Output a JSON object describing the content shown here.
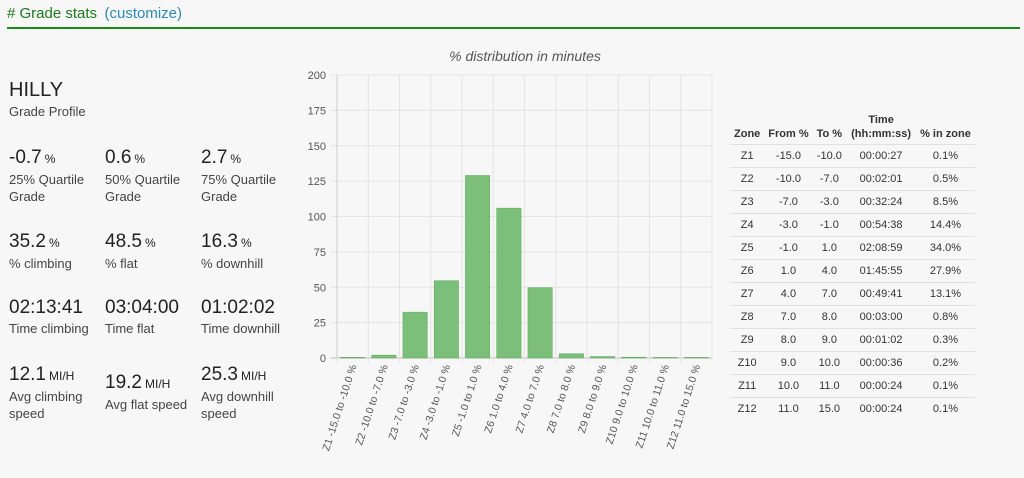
{
  "header": {
    "title": "# Grade stats",
    "customize": "(customize)"
  },
  "profile": {
    "name": "HILLY",
    "label": "Grade Profile"
  },
  "stats": {
    "q25": {
      "value": "-0.7",
      "unit": "%",
      "label": "25% Quartile Grade"
    },
    "q50": {
      "value": "0.6",
      "unit": "%",
      "label": "50% Quartile Grade"
    },
    "q75": {
      "value": "2.7",
      "unit": "%",
      "label": "75% Quartile Grade"
    },
    "pct_climbing": {
      "value": "35.2",
      "unit": "%",
      "label": "% climbing"
    },
    "pct_flat": {
      "value": "48.5",
      "unit": "%",
      "label": "% flat"
    },
    "pct_downhill": {
      "value": "16.3",
      "unit": "%",
      "label": "% downhill"
    },
    "time_climbing": {
      "value": "02:13:41",
      "unit": "",
      "label": "Time climbing"
    },
    "time_flat": {
      "value": "03:04:00",
      "unit": "",
      "label": "Time flat"
    },
    "time_downhill": {
      "value": "01:02:02",
      "unit": "",
      "label": "Time downhill"
    },
    "speed_climbing": {
      "value": "12.1",
      "unit": "MI/H",
      "label": "Avg climbing speed"
    },
    "speed_flat": {
      "value": "19.2",
      "unit": "MI/H",
      "label": "Avg flat speed"
    },
    "speed_downhill": {
      "value": "25.3",
      "unit": "MI/H",
      "label": "Avg downhill speed"
    }
  },
  "colors": {
    "bar": "#7bbf7b",
    "bar_stroke": "#5aa85a",
    "header_line": "#1a8a1a",
    "link": "#2a8ab8"
  },
  "chart_data": {
    "type": "bar",
    "title": "% distribution in minutes",
    "categories": [
      "Z1 -15.0 to -10.0 %",
      "Z2 -10.0 to -7.0 %",
      "Z3 -7.0 to -3.0 %",
      "Z4 -3.0 to -1.0 %",
      "Z5 -1.0 to 1.0 %",
      "Z6 1.0 to 4.0 %",
      "Z7 4.0 to 7.0 %",
      "Z8 7.0 to 8.0 %",
      "Z9 8.0 to 9.0 %",
      "Z10 9.0 to 10.0 %",
      "Z11 10.0 to 11.0 %",
      "Z12 11.0 to 15.0 %"
    ],
    "values": [
      0.45,
      2.02,
      32.4,
      54.63,
      128.98,
      105.92,
      49.68,
      3.0,
      1.03,
      0.6,
      0.4,
      0.4
    ],
    "ylim": [
      0,
      200
    ],
    "yticks": [
      0,
      25,
      50,
      75,
      100,
      125,
      150,
      175,
      200
    ],
    "grid": true,
    "xlabel": "",
    "ylabel": ""
  },
  "zone_table": {
    "headers": [
      "Zone",
      "From %",
      "To %",
      "Time (hh:mm:ss)",
      "% in zone"
    ],
    "rows": [
      [
        "Z1",
        "-15.0",
        "-10.0",
        "00:00:27",
        "0.1%"
      ],
      [
        "Z2",
        "-10.0",
        "-7.0",
        "00:02:01",
        "0.5%"
      ],
      [
        "Z3",
        "-7.0",
        "-3.0",
        "00:32:24",
        "8.5%"
      ],
      [
        "Z4",
        "-3.0",
        "-1.0",
        "00:54:38",
        "14.4%"
      ],
      [
        "Z5",
        "-1.0",
        "1.0",
        "02:08:59",
        "34.0%"
      ],
      [
        "Z6",
        "1.0",
        "4.0",
        "01:45:55",
        "27.9%"
      ],
      [
        "Z7",
        "4.0",
        "7.0",
        "00:49:41",
        "13.1%"
      ],
      [
        "Z8",
        "7.0",
        "8.0",
        "00:03:00",
        "0.8%"
      ],
      [
        "Z9",
        "8.0",
        "9.0",
        "00:01:02",
        "0.3%"
      ],
      [
        "Z10",
        "9.0",
        "10.0",
        "00:00:36",
        "0.2%"
      ],
      [
        "Z11",
        "10.0",
        "11.0",
        "00:00:24",
        "0.1%"
      ],
      [
        "Z12",
        "11.0",
        "15.0",
        "00:00:24",
        "0.1%"
      ]
    ]
  }
}
